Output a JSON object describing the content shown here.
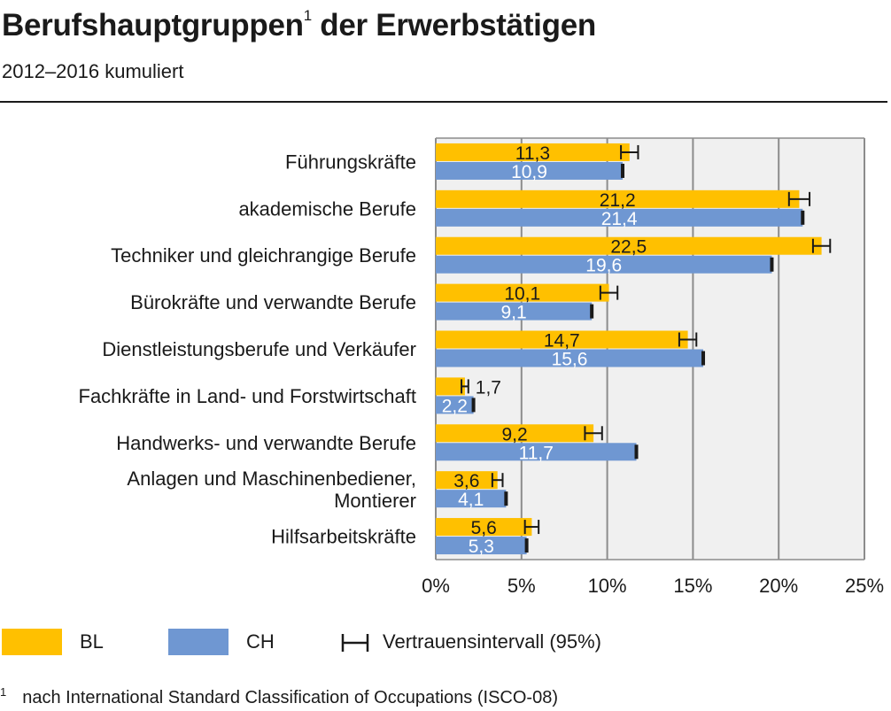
{
  "title": {
    "text": "Berufshauptgruppen",
    "sup": "1",
    "text_after": " der Erwerbstätigen"
  },
  "subtitle": "2012–2016 kumuliert",
  "colors": {
    "bl": "#FFC000",
    "ch": "#6F97D2",
    "plot_bg": "#F0F0F0",
    "grid": "#8C8C8C",
    "rule": "#1A1A1A"
  },
  "chart_data": {
    "type": "bar",
    "orientation": "horizontal",
    "categories": [
      "Führungskräfte",
      "akademische Berufe",
      "Techniker und gleichrangige Berufe",
      "Bürokräfte und verwandte Berufe",
      "Dienstleistungsberufe und Verkäufer",
      "Fachkräfte in Land- und Forstwirtschaft",
      "Handwerks- und verwandte Berufe",
      "Anlagen und Maschinenbediener, Montierer",
      "Hilfsarbeitskräfte"
    ],
    "category_lines": [
      [
        "Führungskräfte"
      ],
      [
        "akademische Berufe"
      ],
      [
        "Techniker und gleichrangige Berufe"
      ],
      [
        "Bürokräfte und verwandte Berufe"
      ],
      [
        "Dienstleistungsberufe und Verkäufer"
      ],
      [
        "Fachkräfte in Land- und Forstwirtschaft"
      ],
      [
        "Handwerks- und verwandte Berufe"
      ],
      [
        "Anlagen und Maschinenbediener,",
        "Montierer"
      ],
      [
        "Hilfsarbeitskräfte"
      ]
    ],
    "series": [
      {
        "name": "BL",
        "values": [
          11.3,
          21.2,
          22.5,
          10.1,
          14.7,
          1.7,
          9.2,
          3.6,
          5.6
        ],
        "labels": [
          "11,3",
          "21,2",
          "22,5",
          "10,1",
          "14,7",
          "1,7",
          "9,2",
          "3,6",
          "5,6"
        ],
        "ci_low": [
          10.8,
          20.6,
          22.0,
          9.6,
          14.2,
          1.5,
          8.7,
          3.3,
          5.2
        ],
        "ci_high": [
          11.8,
          21.8,
          23.0,
          10.6,
          15.2,
          1.9,
          9.7,
          3.9,
          6.0
        ]
      },
      {
        "name": "CH",
        "values": [
          10.9,
          21.4,
          19.6,
          9.1,
          15.6,
          2.2,
          11.7,
          4.1,
          5.3
        ],
        "labels": [
          "10,9",
          "21,4",
          "19,6",
          "9,1",
          "15,6",
          "2,2",
          "11,7",
          "4,1",
          "5,3"
        ],
        "ci_low": [
          10.8,
          21.3,
          19.5,
          9.0,
          15.5,
          2.1,
          11.6,
          4.0,
          5.2
        ],
        "ci_high": [
          11.0,
          21.5,
          19.7,
          9.2,
          15.7,
          2.3,
          11.8,
          4.2,
          5.4
        ]
      }
    ],
    "xlim": [
      0,
      25
    ],
    "xticks": [
      0,
      5,
      10,
      15,
      20,
      25
    ],
    "xtick_labels": [
      "0%",
      "5%",
      "10%",
      "15%",
      "20%",
      "25%"
    ],
    "grid": true,
    "legend_placement": "bottom"
  },
  "legend": {
    "bl": "BL",
    "ch": "CH",
    "ci": "Vertrauensintervall (95%)"
  },
  "footnote": {
    "marker": "1",
    "text": "nach International Standard Classification of Occupations (ISCO-08)"
  }
}
